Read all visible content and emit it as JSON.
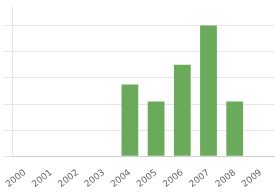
{
  "chart_data": {
    "type": "bar",
    "categories": [
      "2000",
      "2001",
      "2002",
      "2003",
      "2004",
      "2005",
      "2006",
      "2007",
      "2008",
      "2009"
    ],
    "values": [
      0,
      0,
      0,
      0,
      55,
      42,
      70,
      100,
      42,
      0
    ],
    "color": "#6aaa5a",
    "ylim": [
      0,
      115
    ],
    "yticks": [
      0,
      20,
      40,
      60,
      80,
      100
    ],
    "grid": true,
    "tick_labels": "x"
  }
}
